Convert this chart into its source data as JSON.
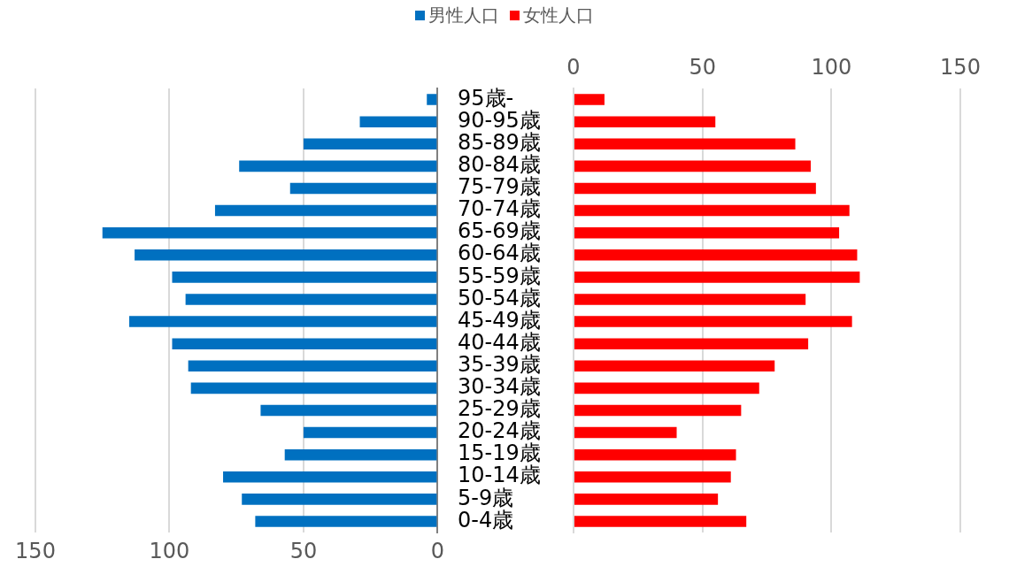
{
  "chart_data": [
    {
      "type": "bar",
      "orientation": "horizontal",
      "series": [
        {
          "name": "男性人口",
          "color": "#0070c0",
          "values": [
            4,
            29,
            50,
            74,
            55,
            83,
            125,
            113,
            99,
            94,
            115,
            99,
            93,
            92,
            66,
            50,
            57,
            80,
            73,
            68
          ]
        }
      ],
      "xlim": [
        150,
        0
      ],
      "xticks": [
        150,
        100,
        50,
        0
      ],
      "grid": "x",
      "legend": "top",
      "tick_labels": "x"
    },
    {
      "type": "bar",
      "orientation": "horizontal",
      "categories": [
        "95歳-",
        "90-95歳",
        "85-89歳",
        "80-84歳",
        "75-79歳",
        "70-74歳",
        "65-69歳",
        "60-64歳",
        "55-59歳",
        "50-54歳",
        "45-49歳",
        "40-44歳",
        "35-39歳",
        "30-34歳",
        "25-29歳",
        "20-24歳",
        "15-19歳",
        "10-14歳",
        "5-9歳",
        "0-4歳"
      ],
      "series": [
        {
          "name": "女性人口",
          "color": "#ff0000",
          "axis": "x2",
          "values": [
            12,
            55,
            86,
            92,
            94,
            107,
            103,
            110,
            111,
            90,
            108,
            91,
            78,
            72,
            65,
            40,
            63,
            61,
            56,
            67
          ]
        }
      ],
      "x2lim": [
        0,
        150
      ],
      "x2ticks": [
        0,
        50,
        100,
        150
      ],
      "grid": "x",
      "legend": "top"
    }
  ]
}
